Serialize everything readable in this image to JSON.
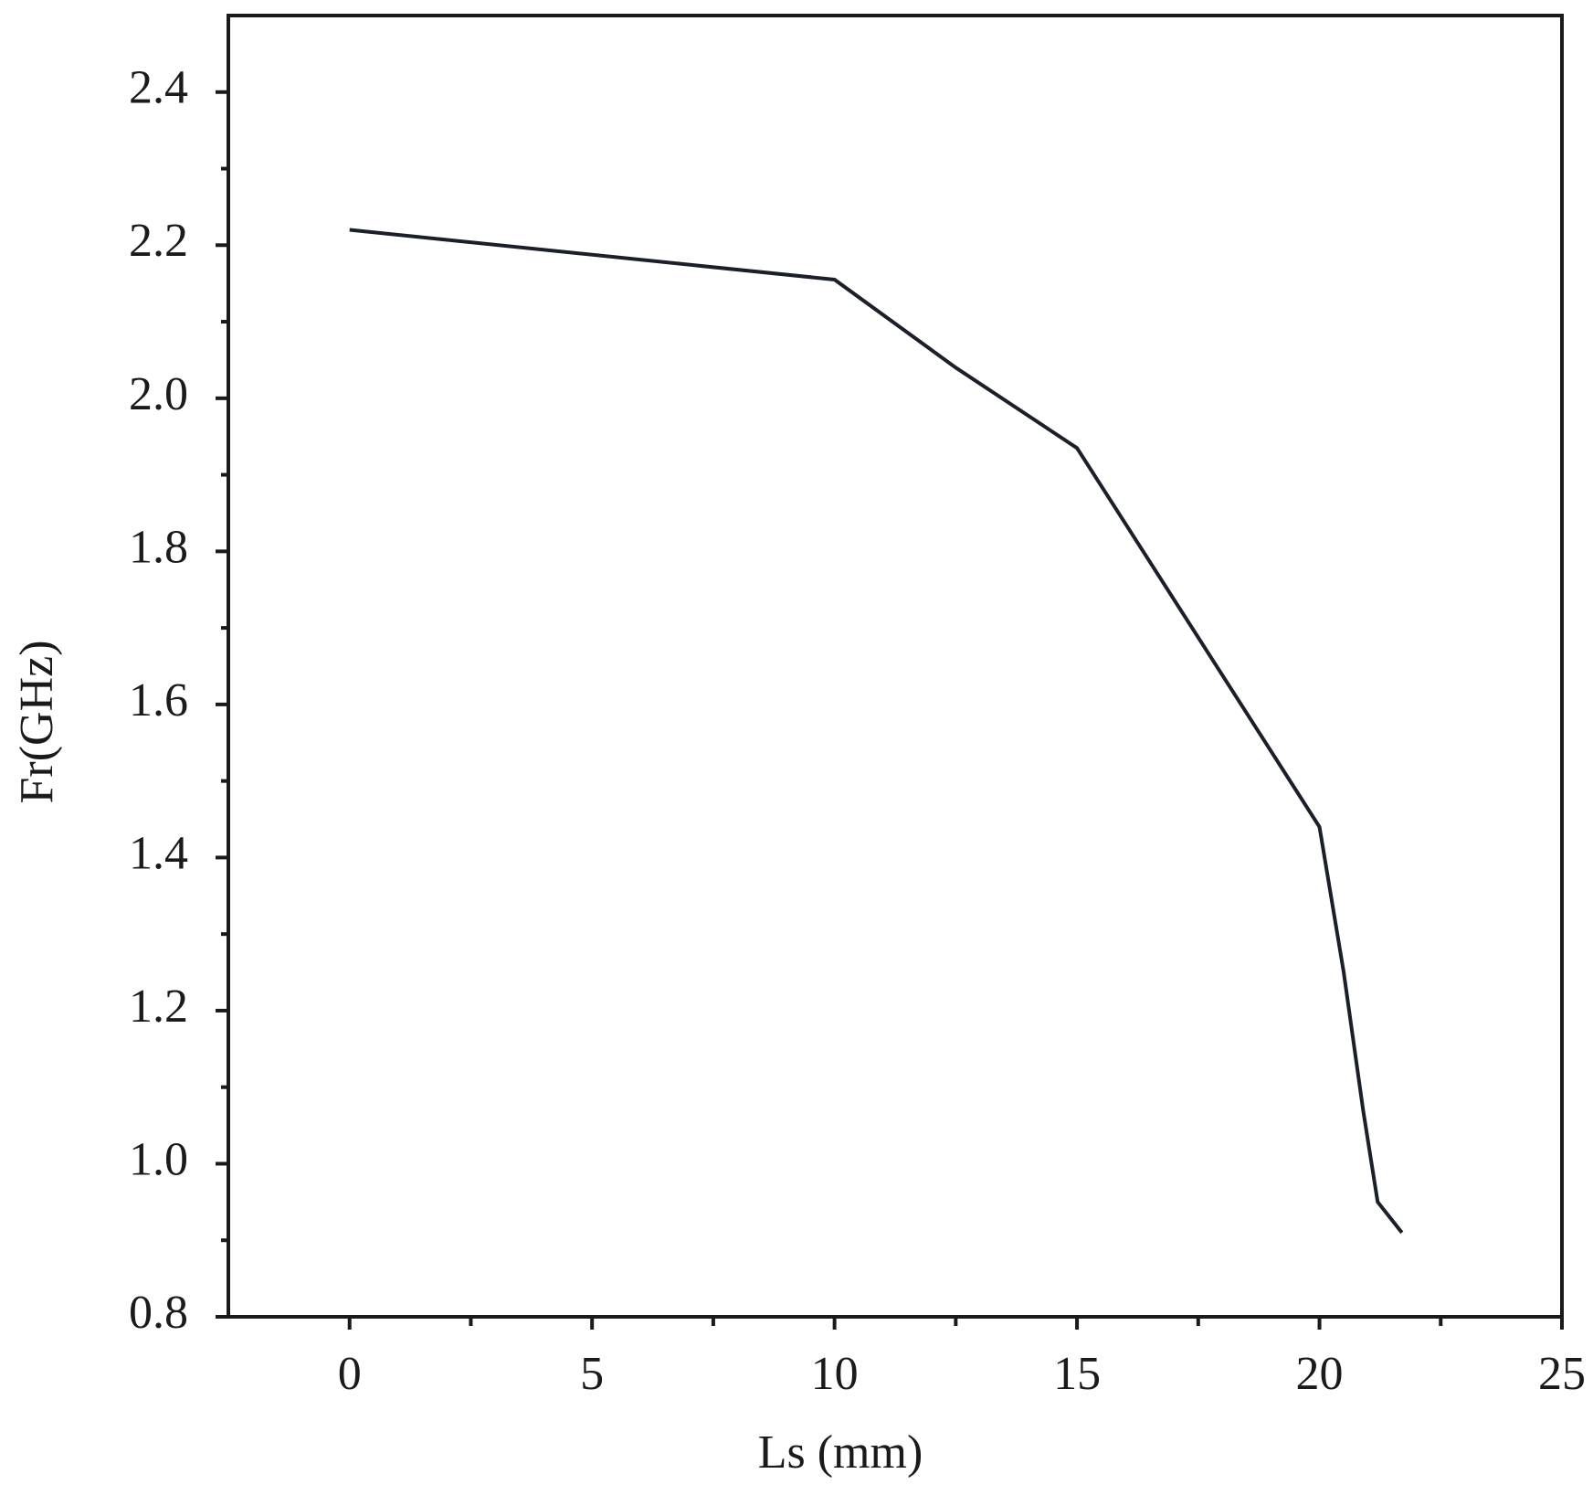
{
  "chart_data": {
    "type": "line",
    "x_label": "Ls (mm)",
    "y_label": "Fr(GHz)",
    "series": [
      {
        "color": "#1a1f2a",
        "x": [
          0,
          10,
          12.5,
          15,
          20,
          20.5,
          20.9,
          21.2,
          21.7
        ],
        "values": [
          2.22,
          2.155,
          2.04,
          1.935,
          1.44,
          1.25,
          1.07,
          0.95,
          0.91
        ]
      }
    ],
    "xlim": [
      -2.5,
      25
    ],
    "xticks": [
      0,
      5,
      10,
      15,
      20,
      25
    ],
    "ylim": [
      0.8,
      2.5
    ],
    "yticks": [
      {
        "value": 0.8,
        "label": "0.8"
      },
      {
        "value": 1.0,
        "label": "1.0"
      },
      1.2,
      1.4,
      1.6,
      1.8,
      {
        "value": 2.0,
        "label": "2.0"
      },
      2.2,
      2.4
    ],
    "grid": false
  }
}
